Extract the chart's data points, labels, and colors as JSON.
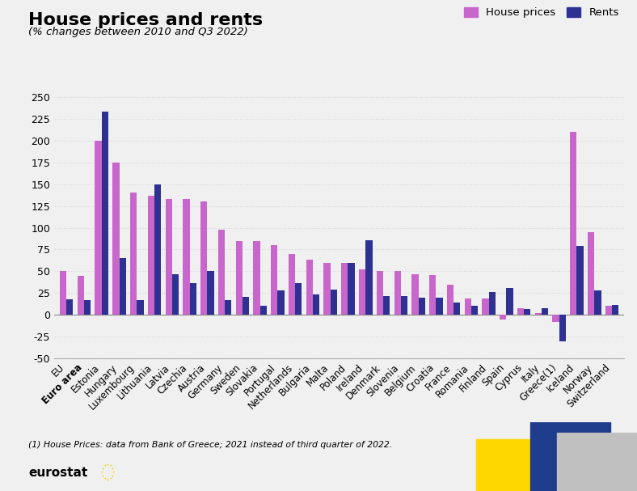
{
  "title": "House prices and rents",
  "subtitle": "(% changes between 2010 and Q3 2022)",
  "legend_labels": [
    "House prices",
    "Rents"
  ],
  "house_color": "#c966cc",
  "rent_color": "#2e3191",
  "footnote": "(1) House Prices: data from Bank of Greece; 2021 instead of third quarter of 2022.",
  "categories": [
    "EU",
    "Euro area",
    "Estonia",
    "Hungary",
    "Luxembourg",
    "Lithuania",
    "Latvia",
    "Czechia",
    "Austria",
    "Germany",
    "Sweden",
    "Slovakia",
    "Portugal",
    "Netherlands",
    "Bulgaria",
    "Malta",
    "Poland",
    "Ireland",
    "Denmark",
    "Slovenia",
    "Belgium",
    "Croatia",
    "France",
    "Romania",
    "Finland",
    "Spain",
    "Cyprus",
    "Italy",
    "Greece(1)",
    "Iceland",
    "Norway",
    "Switzerland"
  ],
  "house_prices": [
    50,
    45,
    200,
    175,
    140,
    137,
    133,
    133,
    130,
    98,
    85,
    85,
    80,
    70,
    63,
    60,
    60,
    52,
    50,
    50,
    47,
    46,
    35,
    19,
    19,
    -5,
    8,
    2,
    -8,
    210,
    95,
    10
  ],
  "rents": [
    18,
    17,
    233,
    65,
    17,
    150,
    47,
    36,
    50,
    17,
    21,
    10,
    28,
    36,
    23,
    29,
    60,
    86,
    22,
    22,
    20,
    20,
    14,
    10,
    26,
    31,
    7,
    8,
    -30,
    79,
    28,
    11
  ],
  "house_prices_show": [
    true,
    true,
    true,
    true,
    true,
    true,
    true,
    true,
    true,
    true,
    true,
    true,
    true,
    true,
    true,
    true,
    true,
    true,
    true,
    true,
    true,
    true,
    true,
    true,
    true,
    true,
    true,
    true,
    true,
    true,
    true,
    true
  ],
  "rents_show": [
    true,
    true,
    true,
    true,
    true,
    true,
    true,
    true,
    true,
    true,
    true,
    true,
    true,
    true,
    true,
    true,
    true,
    true,
    true,
    true,
    true,
    true,
    true,
    true,
    true,
    true,
    true,
    true,
    true,
    true,
    true,
    true
  ],
  "ylim": [
    -50,
    260
  ],
  "yticks": [
    -50,
    -25,
    0,
    25,
    50,
    75,
    100,
    125,
    150,
    175,
    200,
    225,
    250
  ],
  "background_color": "#f0f0f0",
  "grid_color": "#d8d8d8",
  "bar_width": 0.38
}
